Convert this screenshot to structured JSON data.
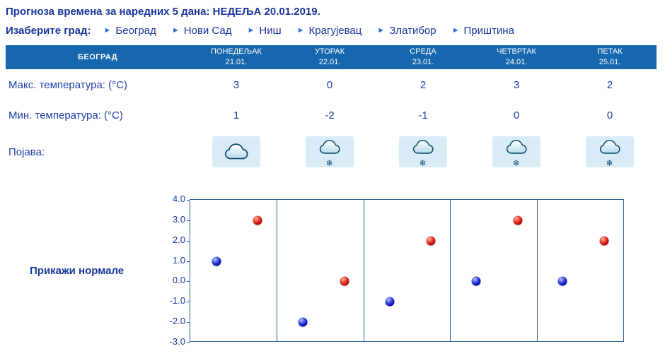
{
  "title": "Прогноза времена за наредних 5 дана: НЕДЕЉА  20.01.2019.",
  "city_selector": {
    "label": "Изаберите град:",
    "cities": [
      {
        "name": "Београд"
      },
      {
        "name": "Нови Сад"
      },
      {
        "name": "Ниш"
      },
      {
        "name": "Крагујевац"
      },
      {
        "name": "Златибор"
      },
      {
        "name": "Приштина"
      }
    ]
  },
  "forecast_table": {
    "city": "БЕОГРАД",
    "columns": [
      {
        "day": "ПОНЕДЕЉАК",
        "date": "21.01."
      },
      {
        "day": "УТОРАК",
        "date": "22.01."
      },
      {
        "day": "СРЕДА",
        "date": "23.01."
      },
      {
        "day": "ЧЕТВРТАК",
        "date": "24.01."
      },
      {
        "day": "ПЕТАК",
        "date": "25.01."
      }
    ],
    "max_row": {
      "label": "Макс. температура: (°C)",
      "values": [
        "3",
        "0",
        "2",
        "3",
        "2"
      ]
    },
    "min_row": {
      "label": "Мин. температура: (°C)",
      "values": [
        "1",
        "-2",
        "-1",
        "0",
        "0"
      ]
    },
    "phenomena_row": {
      "label": "Појава:",
      "values": [
        "cloudy",
        "cloudy-snow",
        "cloudy-snow",
        "cloudy-snow",
        "cloudy-snow"
      ]
    }
  },
  "normals_button": "Прикажи нормале",
  "chart_data": {
    "type": "scatter",
    "categories": [
      "ПОНЕДЕЉАК 21.01.",
      "УТОРАК 22.01.",
      "СРЕДА 23.01.",
      "ЧЕТВРТАК 24.01.",
      "ПЕТАК 25.01."
    ],
    "series": [
      {
        "name": "Мин. температура (°C)",
        "color": "#0000bb",
        "values": [
          1,
          -2,
          -1,
          0,
          0
        ]
      },
      {
        "name": "Макс. температура (°C)",
        "color": "#cc0000",
        "values": [
          3,
          0,
          2,
          3,
          2
        ]
      }
    ],
    "ylim": [
      -3.0,
      4.0
    ],
    "yticks": [
      4.0,
      3.0,
      2.0,
      1.0,
      0.0,
      -1.0,
      -2.0,
      -3.0
    ],
    "grid": "vertical-panel-separators",
    "legend": "none",
    "title": "",
    "xlabel": "",
    "ylabel": ""
  },
  "colors": {
    "header_background": "#1667ad",
    "header_text": "#ffffff",
    "text_navy": "#1a3ca0",
    "icon_cell_background": "#d8ebf7",
    "chart_border": "#2e5fa3",
    "min_dot": "#0000bb",
    "max_dot": "#cc0000"
  }
}
